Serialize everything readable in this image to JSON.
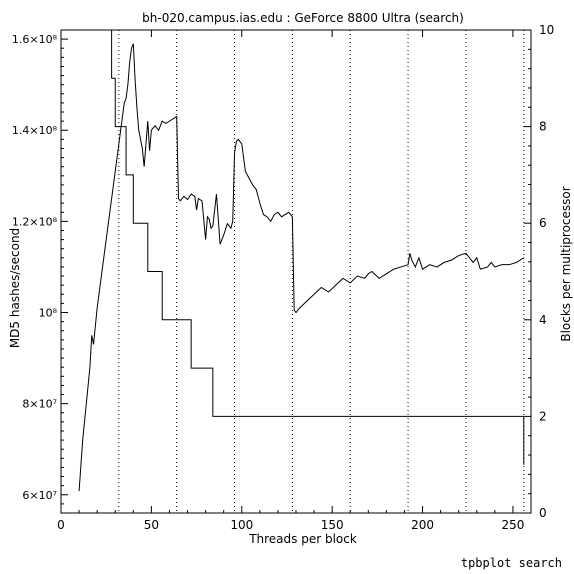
{
  "chart_data": {
    "type": "line",
    "title": "bh-020.campus.ias.edu : GeForce 8800 Ultra (search)",
    "xlabel": "Threads per block",
    "ylabel_left": "MD5 hashes/second",
    "ylabel_right": "Blocks per multiprocessor",
    "xlim": [
      0,
      260
    ],
    "x_ticks": [
      "0",
      "50",
      "100",
      "150",
      "200",
      "250"
    ],
    "x_tick_values": [
      0,
      50,
      100,
      150,
      200,
      250
    ],
    "ylim_left": [
      56000000,
      162000000
    ],
    "y_left_ticks": [
      "6×10⁷",
      "8×10⁷",
      "10⁸",
      "1.2×10⁸",
      "1.4×10⁸",
      "1.6×10⁸"
    ],
    "y_left_tick_values": [
      60000000,
      80000000,
      100000000,
      120000000,
      140000000,
      160000000
    ],
    "ylim_right": [
      0,
      10
    ],
    "y_right_ticks": [
      "0",
      "2",
      "4",
      "6",
      "8",
      "10"
    ],
    "y_right_tick_values": [
      0,
      2,
      4,
      6,
      8,
      10
    ],
    "vertical_gridlines_x": [
      32,
      64,
      96,
      128,
      160,
      192,
      224,
      256
    ],
    "series": [
      {
        "axis": "left",
        "x": [
          10,
          12,
          14,
          16,
          17,
          18,
          19,
          20,
          22,
          24,
          26,
          28,
          30,
          31,
          32,
          33,
          34,
          35,
          36,
          37,
          38,
          39,
          40,
          41,
          42,
          43,
          44,
          45,
          46,
          47,
          48,
          49,
          50,
          52,
          54,
          56,
          58,
          60,
          62,
          64,
          65,
          66,
          68,
          70,
          72,
          74,
          75,
          76,
          78,
          80,
          81,
          82,
          83,
          84,
          86,
          88,
          90,
          92,
          94,
          95,
          96,
          97,
          98,
          100,
          102,
          104,
          106,
          108,
          110,
          112,
          114,
          116,
          118,
          120,
          122,
          124,
          126,
          127,
          128,
          129,
          130,
          132,
          136,
          140,
          144,
          148,
          152,
          156,
          160,
          164,
          168,
          170,
          172,
          176,
          180,
          184,
          188,
          192,
          193,
          194,
          196,
          198,
          200,
          204,
          208,
          212,
          216,
          220,
          224,
          228,
          230,
          232,
          236,
          238,
          240,
          244,
          248,
          252,
          256
        ],
        "y": [
          60800000,
          72000000,
          80000000,
          88000000,
          95000000,
          93000000,
          97000000,
          101000000,
          107000000,
          113000000,
          119000000,
          125000000,
          131000000,
          134000000,
          137000000,
          140000000,
          143000000,
          146000000,
          147000000,
          150000000,
          155000000,
          158000000,
          159000000,
          151000000,
          145000000,
          140000000,
          138000000,
          136000000,
          132000000,
          137000000,
          142000000,
          135500000,
          140000000,
          141000000,
          140000000,
          142000000,
          141500000,
          142000000,
          142500000,
          143000000,
          125000000,
          124500000,
          125500000,
          124800000,
          126000000,
          125500000,
          122500000,
          125000000,
          124500000,
          116000000,
          121000000,
          120500000,
          118500000,
          119000000,
          126000000,
          115000000,
          117000000,
          119500000,
          118500000,
          120000000,
          135000000,
          137500000,
          138000000,
          137000000,
          131000000,
          129500000,
          128000000,
          127000000,
          124000000,
          121500000,
          121000000,
          120000000,
          121500000,
          122000000,
          121000000,
          121500000,
          122000000,
          121500000,
          121000000,
          100500000,
          100000000,
          101000000,
          102500000,
          104000000,
          105500000,
          104500000,
          106000000,
          107500000,
          106500000,
          108000000,
          107500000,
          108500000,
          109000000,
          107500000,
          108500000,
          109500000,
          110000000,
          110500000,
          113000000,
          111500000,
          110000000,
          112000000,
          109500000,
          110500000,
          110000000,
          111000000,
          111500000,
          112500000,
          113000000,
          111000000,
          112000000,
          109500000,
          110000000,
          111000000,
          110000000,
          110500000,
          110500000,
          111000000,
          112000000
        ]
      },
      {
        "axis": "right",
        "step": true,
        "x": [
          24,
          28,
          30,
          32,
          36,
          40,
          44,
          48,
          52,
          56,
          60,
          64,
          72,
          76,
          84,
          88,
          96,
          100,
          104,
          108,
          112,
          116,
          120,
          124,
          128,
          256
        ],
        "y": [
          10,
          9,
          8,
          8,
          7,
          6,
          6,
          5,
          5,
          4,
          4,
          4,
          3,
          3,
          2,
          2,
          2,
          2,
          2,
          2,
          2,
          2,
          2,
          2,
          2,
          1
        ]
      }
    ]
  },
  "footer": "tpbplot search"
}
